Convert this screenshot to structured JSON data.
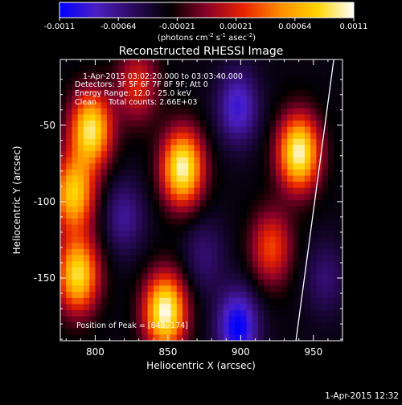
{
  "chart_data": {
    "type": "heatmap",
    "title": "Reconstructed RHESSI Image",
    "xlabel": "Heliocentric X (arcsec)",
    "ylabel": "Heliocentric Y (arcsec)",
    "xlim": [
      776,
      970
    ],
    "ylim": [
      -191,
      -7
    ],
    "x_ticks": [
      800,
      850,
      900,
      950
    ],
    "y_ticks": [
      -50,
      -100,
      -150
    ],
    "colorbar": {
      "range": [
        -0.0011,
        0.0011
      ],
      "tick_labels": [
        "-0.0011",
        "-0.00064",
        "-0.00021",
        "0.00021",
        "0.00064",
        "0.0011"
      ],
      "unit_parts": [
        "(photons cm",
        "-2",
        " s",
        "-1",
        " asec",
        "-2",
        ")"
      ],
      "colormap": [
        "#0000ff",
        "#4c1fc4",
        "#2b0a5e",
        "#000000",
        "#8a0028",
        "#e82200",
        "#ff8c00",
        "#ffd400",
        "#ffffff"
      ]
    },
    "annotations": {
      "time_range": "1-Apr-2015 03:02:20.000 to 03:03:40.000",
      "detectors": "Detectors: 3F 5F 6F 7F 8F 9F; Att 0",
      "energy_range": "Energy Range: 12.0 - 25.0 keV",
      "clean": "Clean     Total counts: 2.66E+03",
      "peak": "Position of Peak = [848,-174]"
    },
    "peak": [
      848,
      -174
    ],
    "sources": [
      {
        "x": 797,
        "y": -53,
        "value": 0.00095
      },
      {
        "x": 785,
        "y": -95,
        "value": 0.0008
      },
      {
        "x": 788,
        "y": -148,
        "value": 0.0009
      },
      {
        "x": 860,
        "y": -78,
        "value": 0.00105
      },
      {
        "x": 848,
        "y": -172,
        "value": 0.0011
      },
      {
        "x": 940,
        "y": -68,
        "value": 0.00105
      },
      {
        "x": 921,
        "y": -130,
        "value": 0.00035
      },
      {
        "x": 829,
        "y": -24,
        "value": 0.00025
      },
      {
        "x": 898,
        "y": -38,
        "value": -0.0009
      },
      {
        "x": 898,
        "y": -182,
        "value": -0.0011
      },
      {
        "x": 820,
        "y": -110,
        "value": -0.0007
      },
      {
        "x": 875,
        "y": -135,
        "value": -0.0006
      },
      {
        "x": 958,
        "y": -150,
        "value": -0.0006
      }
    ],
    "limb_line": [
      [
        964,
        -7
      ],
      [
        938,
        -191
      ]
    ]
  },
  "footer": {
    "date": "1-Apr-2015 12:32"
  }
}
